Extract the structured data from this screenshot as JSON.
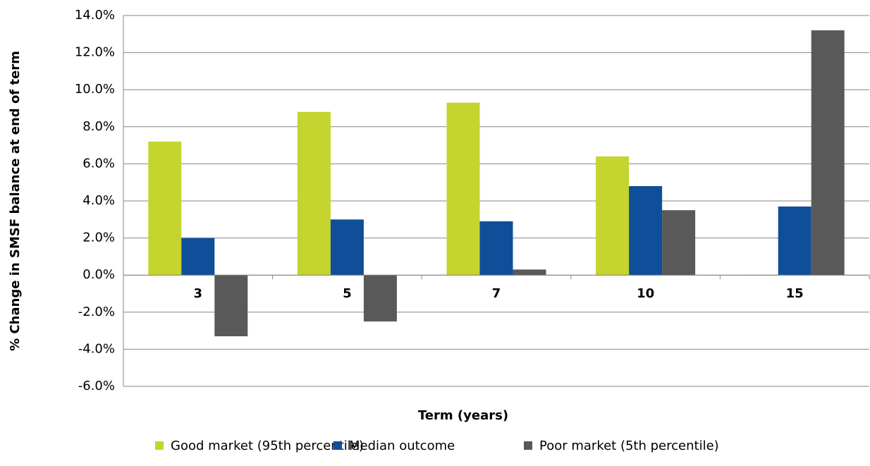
{
  "chart_data": {
    "type": "bar",
    "x_label": "Term (years)",
    "y_label": "% Change in SMSF balance at end of term",
    "categories": [
      "3",
      "5",
      "7",
      "10",
      "15"
    ],
    "series": [
      {
        "name": "Good market (95th percentile)",
        "color": "#c5d42e",
        "values": [
          7.2,
          8.8,
          9.3,
          6.4,
          0.0
        ]
      },
      {
        "name": "Median outcome",
        "color": "#0f4f99",
        "values": [
          2.0,
          3.0,
          2.9,
          4.8,
          3.7
        ]
      },
      {
        "name": "Poor market (5th percentile)",
        "color": "#595959",
        "values": [
          -3.3,
          -2.5,
          0.3,
          3.5,
          13.2
        ]
      }
    ],
    "ylim": [
      -6,
      14
    ],
    "yticks": [
      {
        "value": -6,
        "label": "-6.0%"
      },
      {
        "value": -4,
        "label": "-4.0%"
      },
      {
        "value": -2,
        "label": "-2.0%"
      },
      {
        "value": 0,
        "label": "0.0%"
      },
      {
        "value": 2,
        "label": "2.0%"
      },
      {
        "value": 4,
        "label": "4.0%"
      },
      {
        "value": 6,
        "label": "6.0%"
      },
      {
        "value": 8,
        "label": "8.0%"
      },
      {
        "value": 10,
        "label": "10.0%"
      },
      {
        "value": 12,
        "label": "12.0%"
      },
      {
        "value": 14,
        "label": "14.0%"
      }
    ],
    "grid": true,
    "legend": "bottom"
  }
}
